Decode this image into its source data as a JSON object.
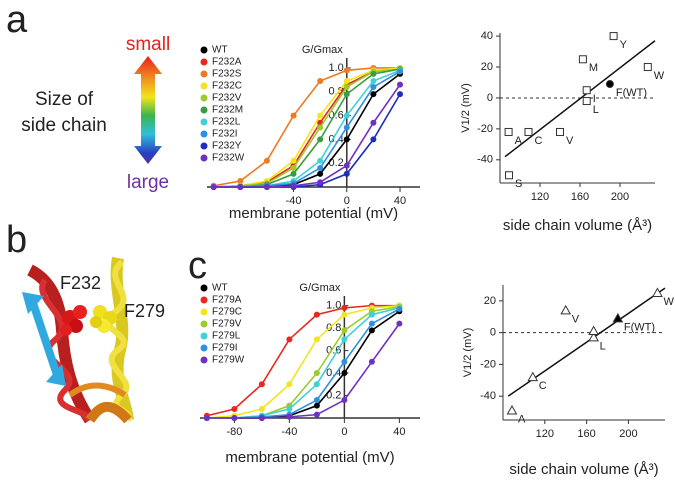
{
  "figure": {
    "panel_labels": [
      "a",
      "b",
      "c"
    ],
    "size_scale": {
      "title": [
        "Size of",
        "side chain"
      ],
      "top": "small",
      "bottom": "large"
    },
    "structure_labels": [
      "F232",
      "F279"
    ]
  },
  "chart_data": [
    {
      "type": "line",
      "title": "G/Gmax",
      "x_label": "membrane potential (mV)",
      "x": [
        -100,
        -80,
        -60,
        -40,
        -20,
        0,
        20,
        40
      ],
      "xlim": [
        -105,
        55
      ],
      "xticks": [
        -40,
        0,
        40
      ],
      "ylim": [
        0,
        1.05
      ],
      "yticks": [
        0.2,
        0.4,
        0.6,
        0.8,
        {
          "value": 1,
          "label": "1.0"
        }
      ],
      "legend": "upper-left",
      "series": [
        {
          "name": "WT",
          "color": "#000000",
          "values": [
            0,
            0,
            0,
            0.02,
            0.11,
            0.4,
            0.78,
            0.95
          ]
        },
        {
          "name": "F232A",
          "color": "#e8281e",
          "values": [
            0,
            0.01,
            0.04,
            0.18,
            0.54,
            0.86,
            0.97,
            0.99
          ]
        },
        {
          "name": "F232S",
          "color": "#ee7a22",
          "values": [
            0.01,
            0.05,
            0.22,
            0.6,
            0.89,
            0.98,
            1,
            1
          ]
        },
        {
          "name": "F232C",
          "color": "#f2e41e",
          "values": [
            0,
            0.01,
            0.05,
            0.22,
            0.6,
            0.89,
            0.98,
            1
          ]
        },
        {
          "name": "F232V",
          "color": "#9ccc2a",
          "values": [
            0,
            0.01,
            0.03,
            0.16,
            0.5,
            0.84,
            0.97,
            0.99
          ]
        },
        {
          "name": "F232M",
          "color": "#3c9c44",
          "values": [
            0,
            0,
            0.02,
            0.11,
            0.4,
            0.78,
            0.95,
            0.99
          ]
        },
        {
          "name": "F232L",
          "color": "#40d0d8",
          "values": [
            0,
            0,
            0.01,
            0.05,
            0.22,
            0.6,
            0.89,
            0.98
          ]
        },
        {
          "name": "F232I",
          "color": "#3090e0",
          "values": [
            0,
            0,
            0.01,
            0.03,
            0.16,
            0.5,
            0.84,
            0.97
          ]
        },
        {
          "name": "F232Y",
          "color": "#1e2cc0",
          "values": [
            0,
            0,
            0,
            0,
            0.02,
            0.11,
            0.4,
            0.78
          ]
        },
        {
          "name": "F232W",
          "color": "#7030c0",
          "values": [
            0,
            0,
            0,
            0.01,
            0.04,
            0.18,
            0.54,
            0.86
          ]
        }
      ]
    },
    {
      "type": "scatter",
      "x_label": "side chain volume (Å³)",
      "y_label": "V1/2 (mV)",
      "marker": "square",
      "x": [
        88.6,
        89,
        108.5,
        140,
        162.9,
        166.7,
        166.7,
        189.9,
        193.6,
        227.8
      ],
      "values": [
        -22,
        -50,
        -22,
        -22,
        25,
        5,
        -2,
        9,
        40,
        20
      ],
      "labels": [
        "A",
        "S",
        "C",
        "V",
        "M",
        "I",
        "L",
        "F(WT)",
        "Y",
        "W"
      ],
      "filled": [
        false,
        false,
        false,
        false,
        false,
        false,
        false,
        true,
        false,
        false
      ],
      "xlim": [
        80,
        235
      ],
      "xticks": [
        120,
        160,
        200
      ],
      "ylim": [
        -55,
        42
      ],
      "yticks": [
        -40,
        -20,
        0,
        20,
        40
      ],
      "fit": {
        "x": [
          85,
          235
        ],
        "y": [
          -38,
          37
        ]
      },
      "hline": 0
    },
    {
      "type": "line",
      "title": "G/Gmax",
      "x_label": "membrane potential (mV)",
      "x": [
        -100,
        -80,
        -60,
        -40,
        -20,
        0,
        20,
        40
      ],
      "xlim": [
        -105,
        55
      ],
      "xticks": [
        -80,
        -40,
        0,
        40
      ],
      "ylim": [
        0,
        1.05
      ],
      "yticks": [
        0.2,
        0.4,
        0.6,
        0.8,
        {
          "value": 1,
          "label": "1.0"
        }
      ],
      "legend": "upper-left",
      "series": [
        {
          "name": "WT",
          "color": "#000000",
          "values": [
            0,
            0,
            0,
            0.02,
            0.11,
            0.4,
            0.78,
            0.95
          ]
        },
        {
          "name": "F279A",
          "color": "#e8281e",
          "values": [
            0.02,
            0.08,
            0.3,
            0.7,
            0.92,
            0.98,
            1,
            1
          ]
        },
        {
          "name": "F279C",
          "color": "#f2e41e",
          "values": [
            0,
            0.02,
            0.08,
            0.3,
            0.7,
            0.92,
            0.98,
            1
          ]
        },
        {
          "name": "F279V",
          "color": "#9ccc2a",
          "values": [
            0,
            0,
            0.02,
            0.11,
            0.4,
            0.78,
            0.95,
            0.99
          ]
        },
        {
          "name": "F279L",
          "color": "#40d0d8",
          "values": [
            0,
            0,
            0.02,
            0.08,
            0.3,
            0.7,
            0.92,
            0.98
          ]
        },
        {
          "name": "F279I",
          "color": "#3090e0",
          "values": [
            0,
            0,
            0.01,
            0.03,
            0.16,
            0.5,
            0.84,
            0.97
          ]
        },
        {
          "name": "F279W",
          "color": "#7030c0",
          "values": [
            0,
            0,
            0,
            0.01,
            0.03,
            0.16,
            0.5,
            0.84
          ]
        }
      ]
    },
    {
      "type": "scatter",
      "x_label": "side chain volume (Å³)",
      "y_label": "V1/2 (mV)",
      "marker": "triangle",
      "x": [
        88.6,
        108.5,
        140,
        166.7,
        166.7,
        189.9,
        227.8
      ],
      "values": [
        -49,
        -28,
        14,
        -3,
        1,
        9,
        25
      ],
      "labels": [
        "A",
        "C",
        "V",
        "L",
        null,
        "F(WT)",
        "W"
      ],
      "filled": [
        false,
        false,
        false,
        false,
        false,
        true,
        false
      ],
      "xlim": [
        80,
        235
      ],
      "xticks": [
        120,
        160,
        200
      ],
      "ylim": [
        -55,
        30
      ],
      "yticks": [
        -40,
        -20,
        0,
        20
      ],
      "fit": {
        "x": [
          85,
          235
        ],
        "y": [
          -40,
          28
        ]
      },
      "hline": 0
    }
  ]
}
